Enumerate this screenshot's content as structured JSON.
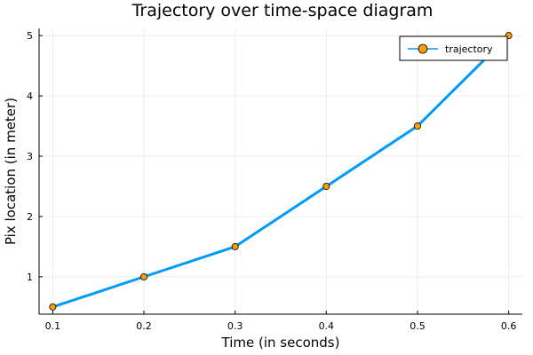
{
  "chart_data": {
    "type": "line",
    "title": "Trajectory over time-space diagram",
    "xlabel": "Time (in seconds)",
    "ylabel": "Pix location (in meter)",
    "xlim": [
      0.085,
      0.615
    ],
    "ylim": [
      0.38,
      5.12
    ],
    "x_ticks": [
      "0.1",
      "0.2",
      "0.3",
      "0.4",
      "0.5",
      "0.6"
    ],
    "y_ticks": [
      "1",
      "2",
      "3",
      "4",
      "5"
    ],
    "grid": true,
    "legend_position": "top-right",
    "series": [
      {
        "name": "trajectory",
        "x": [
          0.1,
          0.2,
          0.3,
          0.4,
          0.5,
          0.6
        ],
        "y": [
          0.5,
          1.0,
          1.5,
          2.5,
          3.5,
          5.0
        ],
        "line_color": "#009af9",
        "marker_color": "#f5a000"
      }
    ]
  }
}
